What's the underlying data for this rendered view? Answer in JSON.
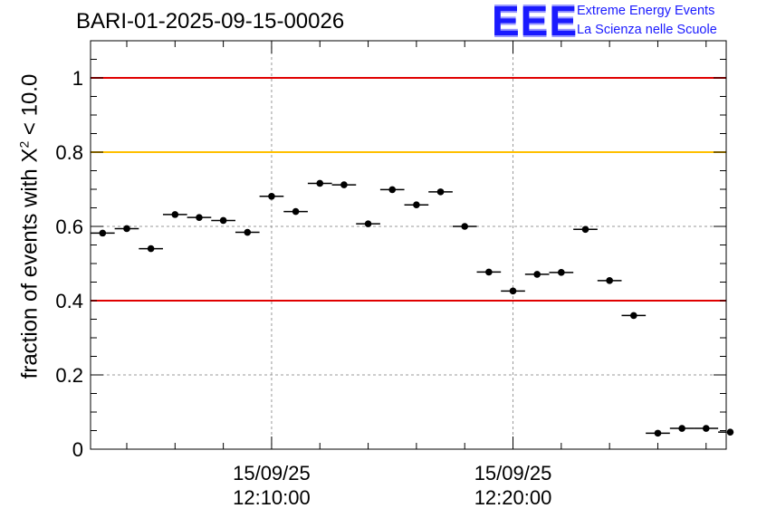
{
  "header": {
    "title": "BARI-01-2025-09-15-00026",
    "logo_mark": "EEE",
    "logo_line1": "Extreme Energy Events",
    "logo_line2": "La Scienza nelle Scuole",
    "logo_color": "#1a1aff"
  },
  "chart_data": {
    "type": "scatter",
    "ylabel_prefix": "fraction of events with ",
    "ylabel_symbol": "X",
    "ylabel_sup": "2",
    "ylabel_suffix": " < 10.0",
    "ylim": [
      0,
      1.1
    ],
    "y_ticks": [
      0,
      0.2,
      0.4,
      0.6,
      0.8,
      1
    ],
    "y_tick_labels": [
      "0",
      "0.2",
      "0.4",
      "0.6",
      "0.8",
      "1"
    ],
    "xlim": [
      "12:02:30",
      "12:28:50"
    ],
    "x_ticks": [
      "12:10:00",
      "12:20:00"
    ],
    "x_tick_labels": [
      {
        "date": "15/09/25",
        "time": "12:10:00"
      },
      {
        "date": "15/09/25",
        "time": "12:20:00"
      }
    ],
    "grid": true,
    "reference_lines": [
      {
        "y": 1.0,
        "color": "#e00000"
      },
      {
        "y": 0.8,
        "color": "#ffc000"
      },
      {
        "y": 0.4,
        "color": "#e00000"
      }
    ],
    "x_bin_width_s": 60,
    "x": [
      "12:03:00",
      "12:04:00",
      "12:05:00",
      "12:06:00",
      "12:07:00",
      "12:08:00",
      "12:09:00",
      "12:10:00",
      "12:11:00",
      "12:12:00",
      "12:13:00",
      "12:14:00",
      "12:15:00",
      "12:16:00",
      "12:17:00",
      "12:18:00",
      "12:19:00",
      "12:20:00",
      "12:21:00",
      "12:22:00",
      "12:23:00",
      "12:24:00",
      "12:25:00",
      "12:26:00",
      "12:27:00",
      "12:28:00",
      "12:29:00"
    ],
    "values": [
      0.582,
      0.594,
      0.54,
      0.632,
      0.624,
      0.616,
      0.584,
      0.681,
      0.64,
      0.716,
      0.712,
      0.607,
      0.699,
      0.658,
      0.693,
      0.6,
      0.477,
      0.426,
      0.471,
      0.476,
      0.592,
      0.454,
      0.36,
      0.043,
      0.056,
      0.056,
      0.046
    ]
  }
}
